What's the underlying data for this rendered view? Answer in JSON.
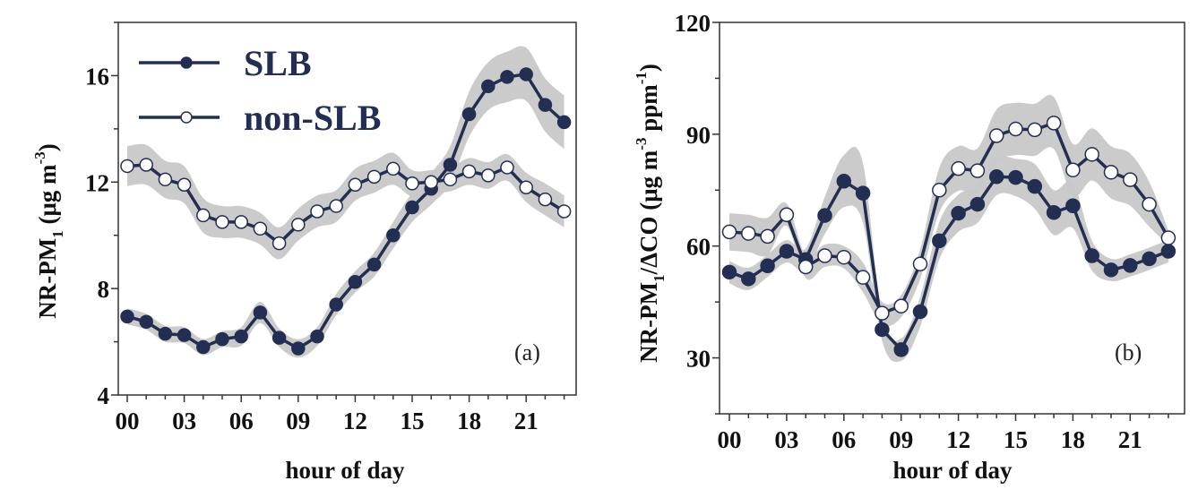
{
  "chart_data": [
    {
      "type": "line",
      "panel_label": "(a)",
      "xlabel": "hour of day",
      "ylabel": "NR-PM",
      "ylabel_sub": "1",
      "ylabel_units": " (μg m",
      "ylabel_sup": "-3",
      "ylabel_close": ")",
      "xlim": [
        0,
        23
      ],
      "ylim": [
        4,
        18
      ],
      "xticks": [
        0,
        3,
        6,
        9,
        12,
        15,
        18,
        21
      ],
      "xtick_labels": [
        "00",
        "03",
        "06",
        "09",
        "12",
        "15",
        "18",
        "21"
      ],
      "yticks": [
        4,
        8,
        12,
        16
      ],
      "ytick_labels": [
        "4",
        "8",
        "12",
        "16"
      ],
      "legend": {
        "placement": "top-left",
        "entries": [
          "SLB",
          "non-SLB"
        ]
      },
      "x": [
        0,
        1,
        2,
        3,
        4,
        5,
        6,
        7,
        8,
        9,
        10,
        11,
        12,
        13,
        14,
        15,
        16,
        17,
        18,
        19,
        20,
        21,
        22,
        23
      ],
      "series": [
        {
          "name": "SLB",
          "marker": "filled-circle",
          "values": [
            6.95,
            6.75,
            6.3,
            6.25,
            5.8,
            6.1,
            6.2,
            7.1,
            6.15,
            5.75,
            6.2,
            7.4,
            8.25,
            8.9,
            10.0,
            11.05,
            11.75,
            12.65,
            14.55,
            15.6,
            15.95,
            16.05,
            14.9,
            14.25
          ],
          "band_halfwidth": [
            0.3,
            0.3,
            0.3,
            0.3,
            0.3,
            0.3,
            0.35,
            0.4,
            0.35,
            0.35,
            0.35,
            0.4,
            0.4,
            0.45,
            0.5,
            0.55,
            0.6,
            0.7,
            0.85,
            0.9,
            0.95,
            1.0,
            1.0,
            1.0
          ]
        },
        {
          "name": "non-SLB",
          "marker": "open-circle",
          "values": [
            12.6,
            12.65,
            12.1,
            11.9,
            10.75,
            10.5,
            10.5,
            10.25,
            9.7,
            10.4,
            10.9,
            11.1,
            11.9,
            12.2,
            12.5,
            11.95,
            12.0,
            12.1,
            12.4,
            12.25,
            12.55,
            11.8,
            11.35,
            10.9
          ],
          "band_halfwidth": [
            0.75,
            0.75,
            0.7,
            0.7,
            0.65,
            0.6,
            0.6,
            0.6,
            0.6,
            0.6,
            0.6,
            0.6,
            0.6,
            0.6,
            0.6,
            0.5,
            0.45,
            0.45,
            0.5,
            0.5,
            0.5,
            0.55,
            0.6,
            0.6
          ]
        }
      ]
    },
    {
      "type": "line",
      "panel_label": "(b)",
      "xlabel": "hour of day",
      "ylabel": "NR-PM",
      "ylabel_sub": "1",
      "ylabel_units": "/ΔCO (μg m",
      "ylabel_sup": "-3",
      "ylabel_units2": " ppm",
      "ylabel_sup2": "-1",
      "ylabel_close": ")",
      "xlim": [
        0,
        23
      ],
      "ylim": [
        15,
        120
      ],
      "xticks": [
        0,
        3,
        6,
        9,
        12,
        15,
        18,
        21
      ],
      "xtick_labels": [
        "00",
        "03",
        "06",
        "09",
        "12",
        "15",
        "18",
        "21"
      ],
      "yticks": [
        30,
        60,
        90,
        120
      ],
      "ytick_labels": [
        "30",
        "60",
        "90",
        "120"
      ],
      "x": [
        0,
        1,
        2,
        3,
        4,
        5,
        6,
        7,
        8,
        9,
        10,
        11,
        12,
        13,
        14,
        15,
        16,
        17,
        18,
        19,
        20,
        21,
        22,
        23
      ],
      "series": [
        {
          "name": "SLB",
          "marker": "filled-circle",
          "values": [
            53.0,
            51.2,
            54.7,
            58.6,
            56.4,
            68.2,
            77.4,
            74.2,
            37.6,
            32.2,
            42.4,
            61.4,
            68.8,
            71.2,
            78.6,
            78.4,
            76.0,
            69.0,
            70.8,
            57.4,
            53.6,
            54.8,
            56.6,
            58.6
          ],
          "band_halfwidth": [
            3,
            3,
            3,
            3,
            3,
            5,
            7,
            8,
            3,
            3,
            4,
            5,
            5,
            5,
            5,
            5,
            6,
            6,
            6,
            4,
            3,
            3,
            3,
            3
          ]
        },
        {
          "name": "non-SLB",
          "marker": "open-circle",
          "values": [
            63.8,
            63.4,
            62.6,
            68.4,
            54.4,
            57.4,
            57.0,
            51.6,
            42.0,
            43.9,
            55.2,
            75.0,
            80.8,
            80.2,
            89.6,
            91.4,
            91.2,
            93.0,
            80.4,
            84.6,
            79.8,
            77.8,
            71.2,
            62.2
          ],
          "band_halfwidth": [
            5,
            5,
            5,
            3,
            3,
            3,
            3,
            4,
            3,
            3,
            4,
            6,
            6,
            6,
            7,
            7,
            7,
            7,
            7,
            7,
            7,
            7,
            6,
            2
          ]
        }
      ]
    }
  ]
}
